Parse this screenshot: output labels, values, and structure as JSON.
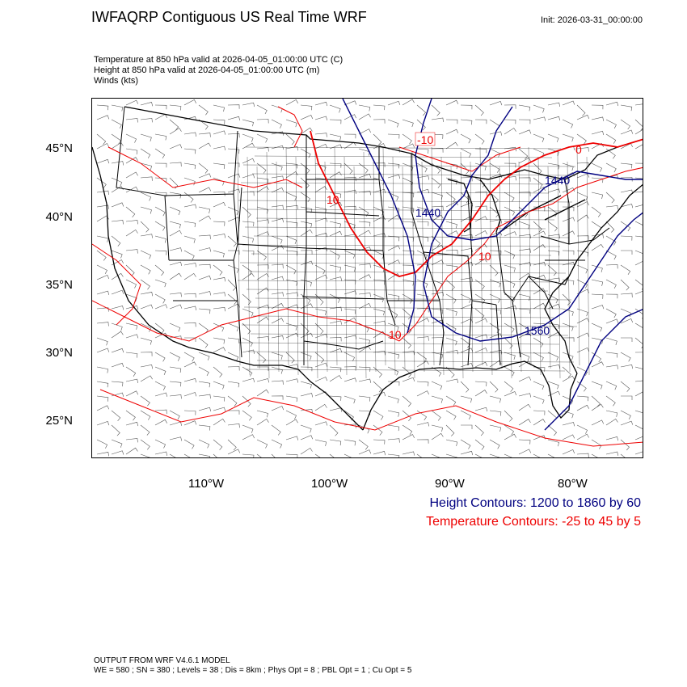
{
  "header": {
    "title": "IWFAQRP Contiguous US Real Time WRF",
    "init": "Init: 2026-03-31_00:00:00"
  },
  "subtitles": {
    "line1": "Temperature at 850 hPa valid at 2026-04-05_01:00:00 UTC   (C)",
    "line2": "Height at 850 hPa valid at 2026-04-05_01:00:00 UTC   (m)",
    "line3": "Winds   (kts)"
  },
  "map": {
    "projection": "Lambert Conformal, Contiguous US",
    "lat_labels": [
      "45°N",
      "40°N",
      "35°N",
      "30°N",
      "25°N"
    ],
    "lon_labels": [
      "110°W",
      "100°W",
      "90°W",
      "80°W"
    ],
    "height_contour_labels": [
      "1440",
      "1440",
      "1560"
    ],
    "temperature_contour_labels": [
      "-10",
      "0",
      "10",
      "10",
      "10"
    ],
    "colors": {
      "height": "#000080",
      "temperature": "#ee0000",
      "borders": "#000000",
      "barbs": "#555555"
    }
  },
  "legend": {
    "height": "Height Contours: 1200 to 1860 by 60",
    "temperature": "Temperature Contours: -25 to 45 by 5"
  },
  "footer": {
    "line1": "OUTPUT FROM WRF V4.6.1 MODEL",
    "line2": "WE = 580 ; SN = 380 ; Levels = 38 ; Dis = 8km ; Phys Opt = 8 ; PBL Opt = 1 ; Cu Opt = 5"
  }
}
